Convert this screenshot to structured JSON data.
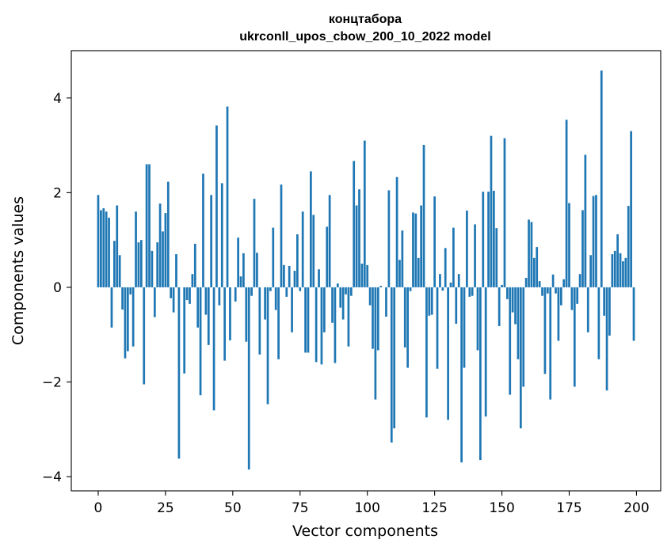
{
  "chart_data": {
    "type": "bar",
    "title": "концтабора",
    "subtitle": "ukrconll_upos_cbow_200_10_2022 model",
    "xlabel": "Vector components",
    "ylabel": "Components values",
    "xlim": [
      -10,
      209
    ],
    "ylim": [
      -4.3,
      5.0
    ],
    "xticks": [
      0,
      25,
      50,
      75,
      100,
      125,
      150,
      175,
      200
    ],
    "xtick_labels": [
      "0",
      "25",
      "50",
      "75",
      "100",
      "125",
      "150",
      "175",
      "200"
    ],
    "yticks": [
      -4,
      -2,
      0,
      2,
      4
    ],
    "ytick_labels": [
      "−4",
      "−2",
      "0",
      "2",
      "4"
    ],
    "grid": false,
    "bar_color": "#1f77b4",
    "x": [
      0,
      1,
      2,
      3,
      4,
      5,
      6,
      7,
      8,
      9,
      10,
      11,
      12,
      13,
      14,
      15,
      16,
      17,
      18,
      19,
      20,
      21,
      22,
      23,
      24,
      25,
      26,
      27,
      28,
      29,
      30,
      31,
      32,
      33,
      34,
      35,
      36,
      37,
      38,
      39,
      40,
      41,
      42,
      43,
      44,
      45,
      46,
      47,
      48,
      49,
      50,
      51,
      52,
      53,
      54,
      55,
      56,
      57,
      58,
      59,
      60,
      61,
      62,
      63,
      64,
      65,
      66,
      67,
      68,
      69,
      70,
      71,
      72,
      73,
      74,
      75,
      76,
      77,
      78,
      79,
      80,
      81,
      82,
      83,
      84,
      85,
      86,
      87,
      88,
      89,
      90,
      91,
      92,
      93,
      94,
      95,
      96,
      97,
      98,
      99,
      100,
      101,
      102,
      103,
      104,
      105,
      106,
      107,
      108,
      109,
      110,
      111,
      112,
      113,
      114,
      115,
      116,
      117,
      118,
      119,
      120,
      121,
      122,
      123,
      124,
      125,
      126,
      127,
      128,
      129,
      130,
      131,
      132,
      133,
      134,
      135,
      136,
      137,
      138,
      139,
      140,
      141,
      142,
      143,
      144,
      145,
      146,
      147,
      148,
      149,
      150,
      151,
      152,
      153,
      154,
      155,
      156,
      157,
      158,
      159,
      160,
      161,
      162,
      163,
      164,
      165,
      166,
      167,
      168,
      169,
      170,
      171,
      172,
      173,
      174,
      175,
      176,
      177,
      178,
      179,
      180,
      181,
      182,
      183,
      184,
      185,
      186,
      187,
      188,
      189,
      190,
      191,
      192,
      193,
      194,
      195,
      196,
      197,
      198,
      199
    ],
    "values": [
      1.95,
      1.63,
      1.67,
      1.6,
      1.47,
      -0.85,
      0.98,
      1.73,
      0.68,
      -0.47,
      -1.5,
      -1.35,
      -0.15,
      -1.25,
      1.6,
      0.95,
      1.0,
      -2.05,
      2.6,
      2.6,
      0.77,
      -0.63,
      0.95,
      1.77,
      1.18,
      1.57,
      2.23,
      -0.23,
      -0.53,
      0.7,
      -3.62,
      0.0,
      -1.82,
      -0.27,
      -0.35,
      0.28,
      0.92,
      -0.85,
      -2.28,
      2.4,
      -0.58,
      -1.22,
      1.95,
      -2.6,
      3.42,
      -0.38,
      2.2,
      -1.55,
      3.82,
      -1.12,
      0.0,
      -0.3,
      1.05,
      0.23,
      0.72,
      -1.15,
      -3.85,
      -0.18,
      1.87,
      0.73,
      -1.42,
      0.0,
      -0.68,
      -2.47,
      -0.08,
      1.26,
      -0.48,
      -1.52,
      2.17,
      0.47,
      -0.2,
      0.45,
      -0.95,
      0.35,
      1.12,
      -0.08,
      1.6,
      -1.38,
      -1.38,
      2.45,
      1.53,
      -1.58,
      0.38,
      -1.63,
      -0.95,
      1.28,
      1.95,
      -0.75,
      -1.6,
      0.08,
      -0.43,
      -0.68,
      -0.15,
      -1.25,
      -0.18,
      2.67,
      1.73,
      2.07,
      0.5,
      3.1,
      0.47,
      -0.38,
      -1.3,
      -2.37,
      -1.33,
      0.03,
      0.0,
      -0.62,
      2.05,
      -3.28,
      -2.98,
      2.33,
      0.58,
      1.2,
      -1.27,
      -1.7,
      -0.08,
      1.58,
      1.56,
      0.62,
      1.73,
      3.01,
      -2.75,
      -0.6,
      -0.58,
      1.92,
      -1.72,
      0.28,
      -0.07,
      0.83,
      -2.8,
      0.1,
      1.26,
      -0.77,
      0.28,
      -3.7,
      -1.7,
      1.62,
      -0.2,
      -0.18,
      1.33,
      -1.33,
      -3.65,
      2.02,
      -2.73,
      2.02,
      3.2,
      2.04,
      1.25,
      -0.82,
      0.05,
      3.15,
      -0.25,
      -2.27,
      -0.53,
      -0.78,
      -1.52,
      -2.98,
      -2.1,
      0.2,
      1.43,
      1.38,
      0.62,
      0.85,
      0.13,
      -0.18,
      -1.83,
      -0.13,
      -2.37,
      0.27,
      -0.13,
      -1.13,
      -0.38,
      0.17,
      3.54,
      1.78,
      -0.48,
      -2.1,
      -0.35,
      0.28,
      1.63,
      2.8,
      -0.95,
      0.68,
      1.93,
      1.95,
      -1.52,
      4.58,
      -0.6,
      -2.18,
      -1.02,
      0.7,
      0.77,
      1.12,
      0.72,
      0.55,
      0.62,
      1.72,
      3.3,
      -1.13
    ]
  }
}
